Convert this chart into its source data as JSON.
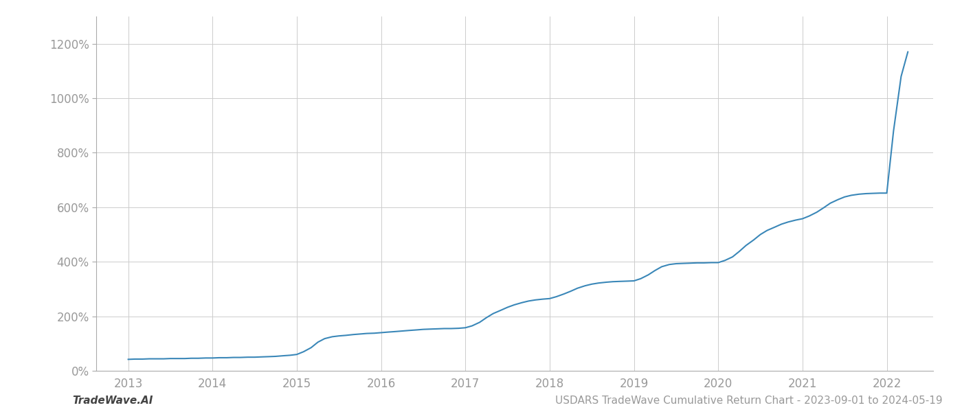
{
  "title": "USDARS TradeWave Cumulative Return Chart - 2023-09-01 to 2024-05-19",
  "watermark": "TradeWave.AI",
  "line_color": "#3a87b8",
  "background_color": "#ffffff",
  "grid_color": "#cccccc",
  "x_years": [
    2013,
    2014,
    2015,
    2016,
    2017,
    2018,
    2019,
    2020,
    2021,
    2022
  ],
  "x_data": [
    2013.0,
    2013.08,
    2013.17,
    2013.25,
    2013.33,
    2013.42,
    2013.5,
    2013.58,
    2013.67,
    2013.75,
    2013.83,
    2013.92,
    2014.0,
    2014.08,
    2014.17,
    2014.25,
    2014.33,
    2014.42,
    2014.5,
    2014.58,
    2014.67,
    2014.75,
    2014.83,
    2014.92,
    2015.0,
    2015.08,
    2015.17,
    2015.25,
    2015.33,
    2015.42,
    2015.5,
    2015.58,
    2015.67,
    2015.75,
    2015.83,
    2015.92,
    2016.0,
    2016.08,
    2016.17,
    2016.25,
    2016.33,
    2016.42,
    2016.5,
    2016.58,
    2016.67,
    2016.75,
    2016.83,
    2016.92,
    2017.0,
    2017.08,
    2017.17,
    2017.25,
    2017.33,
    2017.42,
    2017.5,
    2017.58,
    2017.67,
    2017.75,
    2017.83,
    2017.92,
    2018.0,
    2018.08,
    2018.17,
    2018.25,
    2018.33,
    2018.42,
    2018.5,
    2018.58,
    2018.67,
    2018.75,
    2018.83,
    2018.92,
    2019.0,
    2019.08,
    2019.17,
    2019.25,
    2019.33,
    2019.42,
    2019.5,
    2019.58,
    2019.67,
    2019.75,
    2019.83,
    2019.92,
    2020.0,
    2020.08,
    2020.17,
    2020.25,
    2020.33,
    2020.42,
    2020.5,
    2020.58,
    2020.67,
    2020.75,
    2020.83,
    2020.92,
    2021.0,
    2021.08,
    2021.17,
    2021.25,
    2021.33,
    2021.42,
    2021.5,
    2021.58,
    2021.67,
    2021.75,
    2021.83,
    2021.92,
    2022.0,
    2022.08,
    2022.17,
    2022.25
  ],
  "y_data": [
    0.42,
    0.43,
    0.43,
    0.44,
    0.44,
    0.44,
    0.45,
    0.45,
    0.45,
    0.46,
    0.46,
    0.47,
    0.47,
    0.48,
    0.48,
    0.49,
    0.49,
    0.5,
    0.5,
    0.51,
    0.52,
    0.53,
    0.55,
    0.57,
    0.6,
    0.7,
    0.85,
    1.05,
    1.18,
    1.25,
    1.28,
    1.3,
    1.33,
    1.35,
    1.37,
    1.38,
    1.4,
    1.42,
    1.44,
    1.46,
    1.48,
    1.5,
    1.52,
    1.53,
    1.54,
    1.55,
    1.55,
    1.56,
    1.58,
    1.65,
    1.78,
    1.95,
    2.1,
    2.22,
    2.33,
    2.42,
    2.5,
    2.56,
    2.6,
    2.63,
    2.65,
    2.72,
    2.82,
    2.92,
    3.03,
    3.12,
    3.18,
    3.22,
    3.25,
    3.27,
    3.28,
    3.29,
    3.3,
    3.38,
    3.52,
    3.68,
    3.82,
    3.9,
    3.93,
    3.94,
    3.95,
    3.96,
    3.96,
    3.97,
    3.97,
    4.05,
    4.18,
    4.38,
    4.6,
    4.8,
    5.0,
    5.15,
    5.27,
    5.38,
    5.46,
    5.53,
    5.58,
    5.68,
    5.82,
    5.98,
    6.15,
    6.28,
    6.38,
    6.44,
    6.48,
    6.5,
    6.51,
    6.52,
    6.52,
    8.8,
    10.8,
    11.7
  ],
  "ylim": [
    0,
    13.0
  ],
  "ytick_vals": [
    0,
    2,
    4,
    6,
    8,
    10,
    12
  ],
  "ytick_labels": [
    "0%",
    "200%",
    "400%",
    "600%",
    "800%",
    "1000%",
    "1200%"
  ],
  "xlim_left": 2012.62,
  "xlim_right": 2022.55,
  "line_width": 1.5,
  "title_fontsize": 11,
  "watermark_fontsize": 11,
  "tick_fontsize": 12,
  "tick_color": "#999999",
  "spine_color": "#aaaaaa"
}
